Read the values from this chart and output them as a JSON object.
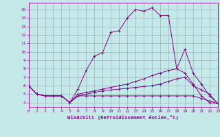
{
  "xlabel": "Windchill (Refroidissement éolien,°C)",
  "xlim": [
    0,
    23
  ],
  "ylim": [
    3.5,
    15.8
  ],
  "yticks": [
    4,
    5,
    6,
    7,
    8,
    9,
    10,
    11,
    12,
    13,
    14,
    15
  ],
  "xticks": [
    0,
    1,
    2,
    3,
    4,
    5,
    6,
    7,
    8,
    9,
    10,
    11,
    12,
    13,
    14,
    15,
    16,
    17,
    18,
    19,
    20,
    21,
    22,
    23
  ],
  "bg_color": "#c5e8e8",
  "line_color": "#880088",
  "grid_color": "#99aabb",
  "series": [
    [
      6.0,
      5.0,
      4.8,
      4.8,
      4.8,
      4.0,
      5.6,
      7.8,
      9.5,
      9.9,
      12.3,
      12.5,
      14.0,
      15.0,
      14.8,
      15.2,
      14.3,
      14.3,
      8.0,
      10.3,
      7.5,
      6.2,
      4.8,
      3.9
    ],
    [
      6.0,
      5.0,
      4.8,
      4.8,
      4.8,
      4.0,
      5.0,
      5.2,
      5.4,
      5.6,
      5.8,
      6.0,
      6.2,
      6.5,
      6.8,
      7.2,
      7.5,
      7.8,
      8.0,
      7.5,
      6.2,
      4.8,
      4.0,
      3.9
    ],
    [
      6.0,
      5.0,
      4.8,
      4.8,
      4.8,
      4.0,
      4.8,
      4.8,
      4.8,
      4.8,
      4.8,
      4.8,
      4.8,
      4.8,
      4.8,
      4.8,
      4.8,
      4.8,
      4.8,
      4.8,
      4.8,
      4.5,
      4.2,
      3.9
    ],
    [
      6.0,
      5.0,
      4.8,
      4.8,
      4.8,
      4.0,
      4.8,
      5.0,
      5.2,
      5.4,
      5.5,
      5.6,
      5.7,
      5.8,
      5.9,
      6.0,
      6.2,
      6.5,
      6.8,
      7.0,
      6.0,
      5.5,
      5.0,
      3.9
    ]
  ]
}
